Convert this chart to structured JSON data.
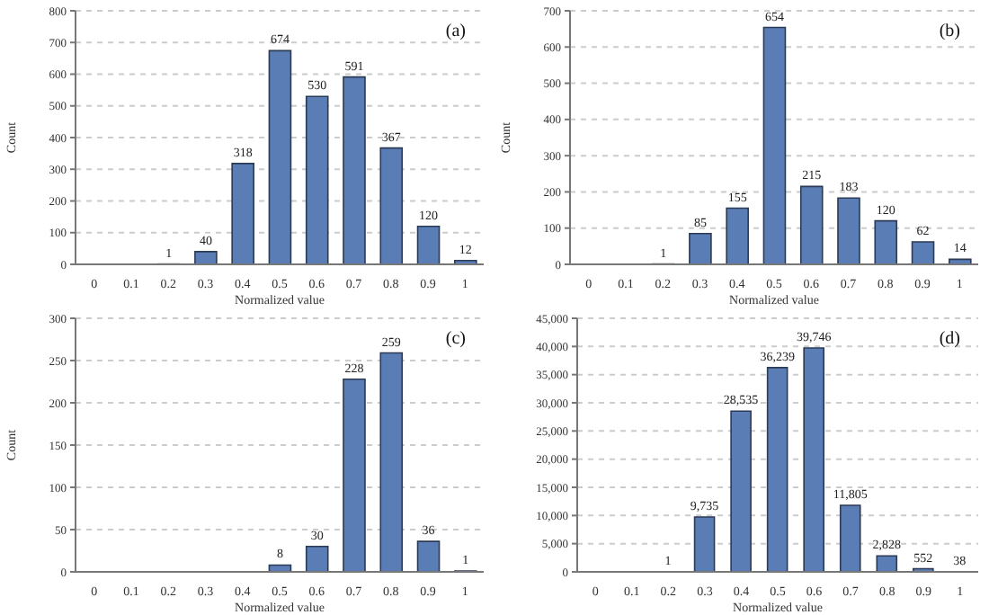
{
  "chart_data": [
    {
      "type": "bar",
      "annotations": [
        "(a)"
      ],
      "xlabel": "Normalized value",
      "ylabel": "Count",
      "categories": [
        "0",
        "0.1",
        "0.2",
        "0.3",
        "0.4",
        "0.5",
        "0.6",
        "0.7",
        "0.8",
        "0.9",
        "1"
      ],
      "values": [
        0,
        0,
        1,
        40,
        318,
        674,
        530,
        591,
        367,
        120,
        12
      ],
      "value_labels": [
        null,
        null,
        "1",
        "40",
        "318",
        "674",
        "530",
        "591",
        "367",
        "120",
        "12"
      ],
      "color": "#5b7db5",
      "ylim": [
        0,
        800
      ],
      "yticks": [
        0,
        100,
        200,
        300,
        400,
        500,
        600,
        700,
        800
      ],
      "grid": "y",
      "legend": false
    },
    {
      "type": "bar",
      "annotations": [
        "(b)"
      ],
      "xlabel": "Normalized value",
      "ylabel": "Count",
      "categories": [
        "0",
        "0.1",
        "0.2",
        "0.3",
        "0.4",
        "0.5",
        "0.6",
        "0.7",
        "0.8",
        "0.9",
        "1"
      ],
      "values": [
        0,
        0,
        1,
        85,
        155,
        654,
        215,
        183,
        120,
        62,
        14
      ],
      "value_labels": [
        null,
        null,
        "1",
        "85",
        "155",
        "654",
        "215",
        "183",
        "120",
        "62",
        "14"
      ],
      "color": "#5b7db5",
      "ylim": [
        0,
        700
      ],
      "yticks": [
        0,
        100,
        200,
        300,
        400,
        500,
        600,
        700
      ],
      "grid": "y",
      "legend": false
    },
    {
      "type": "bar",
      "annotations": [
        "(c)"
      ],
      "xlabel": "Normalized value",
      "ylabel": "Count",
      "categories": [
        "0",
        "0.1",
        "0.2",
        "0.3",
        "0.4",
        "0.5",
        "0.6",
        "0.7",
        "0.8",
        "0.9",
        "1"
      ],
      "values": [
        0,
        0,
        0,
        0,
        0,
        8,
        30,
        228,
        259,
        36,
        1
      ],
      "value_labels": [
        null,
        null,
        null,
        null,
        null,
        "8",
        "30",
        "228",
        "259",
        "36",
        "1"
      ],
      "color": "#5b7db5",
      "ylim": [
        0,
        300
      ],
      "yticks": [
        0,
        50,
        100,
        150,
        200,
        250,
        300
      ],
      "grid": "y",
      "legend": false
    },
    {
      "type": "bar",
      "annotations": [
        "(d)"
      ],
      "xlabel": "Normalized value",
      "categories": [
        "0",
        "0.1",
        "0.2",
        "0.3",
        "0.4",
        "0.5",
        "0.6",
        "0.7",
        "0.8",
        "0.9",
        "1"
      ],
      "values": [
        0,
        0,
        1,
        9735,
        28535,
        36239,
        39746,
        11805,
        2828,
        552,
        38
      ],
      "value_labels": [
        null,
        null,
        "1",
        "9,735",
        "28,535",
        "36,239",
        "39,746",
        "11,805",
        "2,828",
        "552",
        "38"
      ],
      "color": "#5b7db5",
      "ylim": [
        0,
        45000
      ],
      "yticks": [
        0,
        {
          "value": 5000,
          "label": "5,000"
        },
        {
          "value": 10000,
          "label": "10,000"
        },
        {
          "value": 15000,
          "label": "15,000"
        },
        {
          "value": 20000,
          "label": "20,000"
        },
        {
          "value": 25000,
          "label": "25,000"
        },
        {
          "value": 30000,
          "label": "30,000"
        },
        {
          "value": 35000,
          "label": "35,000"
        },
        {
          "value": 40000,
          "label": "40,000"
        },
        {
          "value": 45000,
          "label": "45,000"
        }
      ],
      "grid": "y",
      "legend": false
    }
  ]
}
